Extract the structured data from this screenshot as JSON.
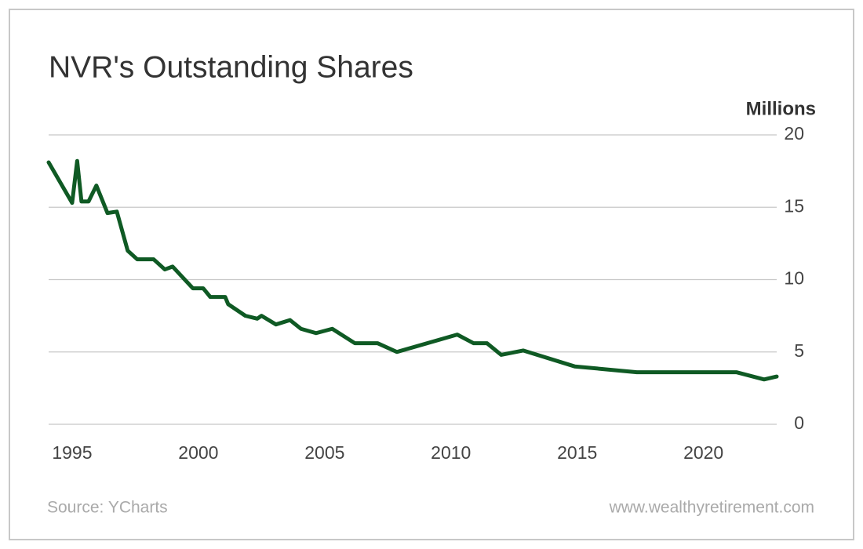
{
  "chart_data": {
    "type": "line",
    "title": "NVR's Outstanding Shares",
    "y_label": "Millions",
    "source": "Source: YCharts",
    "website": "www.wealthyretirement.com",
    "x": [
      1994.07,
      1995.0,
      1995.2,
      1995.37,
      1995.65,
      1995.96,
      1996.4,
      1996.77,
      1997.2,
      1997.58,
      1998.23,
      1998.67,
      1998.98,
      1999.78,
      2000.19,
      2000.47,
      2001.06,
      2001.18,
      2001.86,
      2002.33,
      2002.5,
      2003.07,
      2003.63,
      2004.06,
      2004.66,
      2005.3,
      2006.2,
      2007.1,
      2007.86,
      2010.25,
      2010.9,
      2011.43,
      2011.99,
      2012.86,
      2014.9,
      2017.36,
      2021.3,
      2022.4,
      2022.9
    ],
    "series": [
      {
        "name": "Outstanding Shares",
        "color": "#0f5a24",
        "values": [
          18.1,
          15.3,
          18.2,
          15.4,
          15.4,
          16.5,
          14.6,
          14.7,
          12.0,
          11.4,
          11.4,
          10.7,
          10.9,
          9.4,
          9.4,
          8.8,
          8.8,
          8.3,
          7.5,
          7.3,
          7.5,
          6.9,
          7.2,
          6.6,
          6.3,
          6.6,
          5.6,
          5.6,
          5.0,
          6.2,
          5.6,
          5.6,
          4.8,
          5.1,
          4.0,
          3.6,
          3.6,
          3.1,
          3.3
        ]
      }
    ],
    "xlim": [
      1994.07,
      2022.9
    ],
    "xticks": [
      1995,
      2000,
      2005,
      2010,
      2015,
      2020
    ],
    "ylim": [
      0,
      20
    ],
    "yticks": [
      0,
      5,
      10,
      15,
      20
    ],
    "grid": true
  }
}
